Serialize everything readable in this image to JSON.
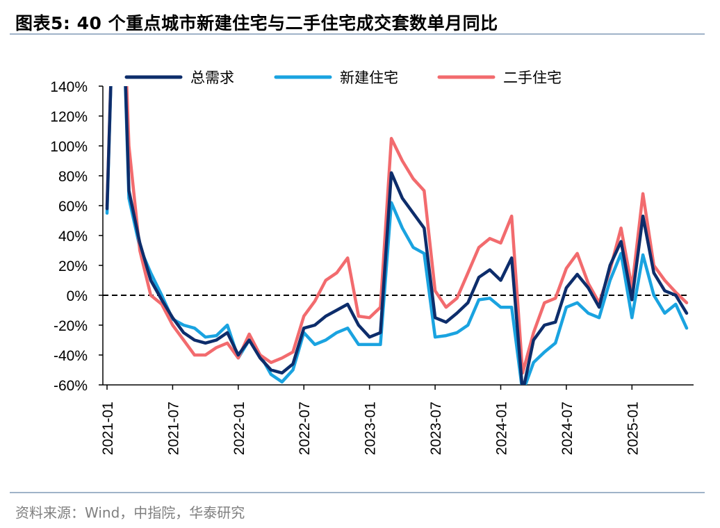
{
  "header": {
    "title": "图表5:  40 个重点城市新建住宅与二手住宅成交套数单月同比"
  },
  "footer": {
    "source": "资料来源：Wind，中指院，华泰研究"
  },
  "chart_data": {
    "type": "line",
    "title": "40 个重点城市新建住宅与二手住宅成交套数单月同比",
    "ylim": [
      -60,
      140
    ],
    "y_ticks": [
      "140%",
      "120%",
      "100%",
      "80%",
      "60%",
      "40%",
      "20%",
      "0%",
      "-20%",
      "-40%",
      "-60%"
    ],
    "y_tick_values": [
      140,
      120,
      100,
      80,
      60,
      40,
      20,
      0,
      -20,
      -40,
      -60
    ],
    "x_ticks": [
      "2021-01",
      "2021-07",
      "2022-01",
      "2022-07",
      "2023-01",
      "2023-07",
      "2024-01",
      "2024-07",
      "2025-01"
    ],
    "x_tick_index": [
      0,
      6,
      12,
      18,
      24,
      30,
      36,
      42,
      48
    ],
    "reference_line": 0,
    "grid": false,
    "legend_position": "top",
    "x": [
      "2021-01",
      "2021-02",
      "2021-03",
      "2021-04",
      "2021-05",
      "2021-06",
      "2021-07",
      "2021-08",
      "2021-09",
      "2021-10",
      "2021-11",
      "2021-12",
      "2022-01",
      "2022-02",
      "2022-03",
      "2022-04",
      "2022-05",
      "2022-06",
      "2022-07",
      "2022-08",
      "2022-09",
      "2022-10",
      "2022-11",
      "2022-12",
      "2023-01",
      "2023-02",
      "2023-03",
      "2023-04",
      "2023-05",
      "2023-06",
      "2023-07",
      "2023-08",
      "2023-09",
      "2023-10",
      "2023-11",
      "2023-12",
      "2024-01",
      "2024-02",
      "2024-03",
      "2024-04",
      "2024-05",
      "2024-06",
      "2024-07",
      "2024-08",
      "2024-09",
      "2024-10",
      "2024-11",
      "2024-12",
      "2025-01",
      "2025-02",
      "2025-03",
      "2025-04",
      "2025-05",
      "2025-06"
    ],
    "series": [
      {
        "name": "总需求",
        "color": "#0d2d6b",
        "values": [
          58,
          300,
          70,
          35,
          10,
          -3,
          -15,
          -25,
          -30,
          -32,
          -30,
          -25,
          -40,
          -30,
          -42,
          -50,
          -52,
          -46,
          -22,
          -20,
          -14,
          -10,
          -6,
          -20,
          -28,
          -25,
          82,
          65,
          55,
          45,
          -15,
          -18,
          -12,
          -5,
          12,
          17,
          10,
          25,
          -65,
          -30,
          -20,
          -18,
          5,
          14,
          5,
          -8,
          20,
          36,
          -3,
          53,
          15,
          3,
          0,
          -12
        ]
      },
      {
        "name": "新建住宅",
        "color": "#1aa3e0",
        "values": [
          55,
          300,
          65,
          32,
          15,
          0,
          -16,
          -20,
          -22,
          -28,
          -27,
          -20,
          -42,
          -30,
          -40,
          -53,
          -58,
          -50,
          -25,
          -33,
          -30,
          -25,
          -22,
          -33,
          -33,
          -33,
          62,
          45,
          32,
          28,
          -28,
          -27,
          -25,
          -20,
          -3,
          -2,
          -8,
          -8,
          -65,
          -45,
          -38,
          -32,
          -8,
          -5,
          -12,
          -15,
          10,
          28,
          -15,
          27,
          0,
          -12,
          -6,
          -22
        ]
      },
      {
        "name": "二手住宅",
        "color": "#f26b6e",
        "values": [
          60,
          300,
          100,
          30,
          0,
          -6,
          -20,
          -30,
          -40,
          -40,
          -35,
          -32,
          -42,
          -26,
          -40,
          -45,
          -42,
          -38,
          -14,
          -4,
          10,
          15,
          25,
          -14,
          -15,
          -8,
          105,
          90,
          78,
          70,
          3,
          -8,
          -2,
          15,
          32,
          38,
          35,
          53,
          -52,
          -25,
          -5,
          -2,
          18,
          28,
          8,
          -5,
          17,
          45,
          5,
          68,
          20,
          10,
          2,
          -5
        ]
      }
    ]
  }
}
